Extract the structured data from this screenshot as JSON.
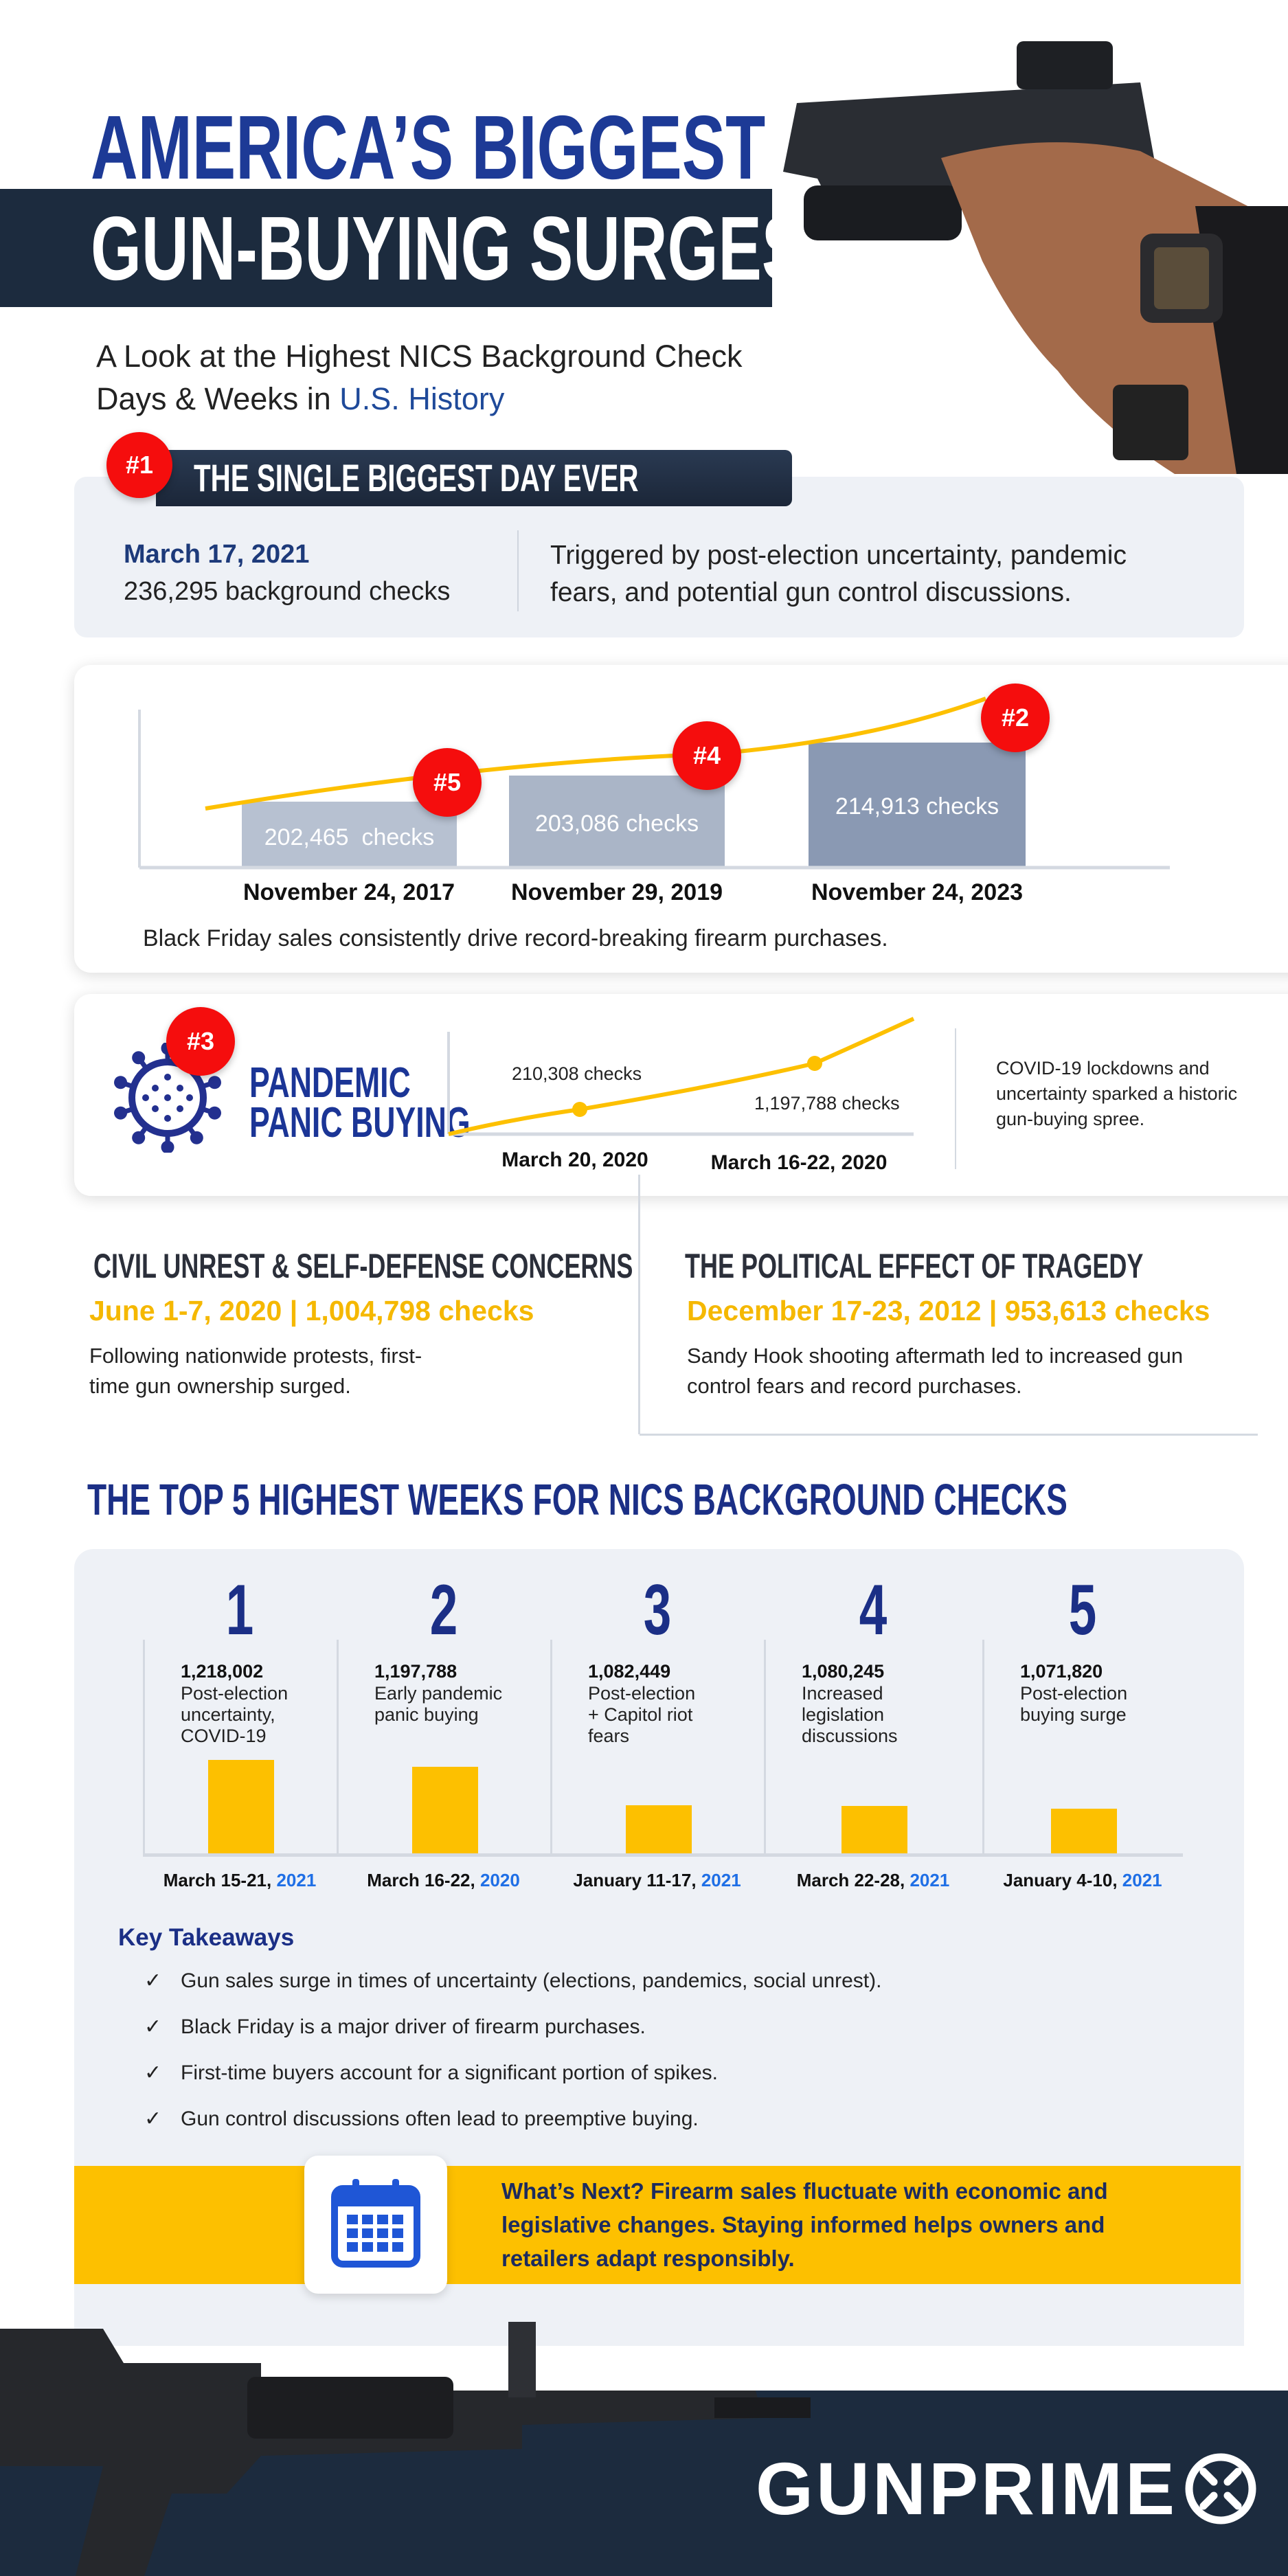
{
  "header": {
    "title_line1": "AMERICA’S BIGGEST",
    "title_line2": "GUN-BUYING SURGES",
    "subtitle_line1": "A Look at the Highest NICS Background Check",
    "subtitle_line2_prefix": "Days & Weeks in ",
    "subtitle_line2_highlight": "U.S. History"
  },
  "biggest_day": {
    "badge": "#1",
    "heading": "THE SINGLE BIGGEST DAY EVER",
    "date": "March 17, 2021",
    "checks": "236,295 background checks",
    "description_line1": "Triggered by post-election uncertainty, pandemic",
    "description_line2": "fears, and potential gun control discussions."
  },
  "black_friday": {
    "bars": [
      {
        "badge": "#5",
        "label": "202,465  checks",
        "date": "November 24, 2017",
        "value": 202465
      },
      {
        "badge": "#4",
        "label": "203,086 checks",
        "date": "November 29, 2019",
        "value": 203086
      },
      {
        "badge": "#2",
        "label": "214,913 checks",
        "date": "November 24, 2023",
        "value": 214913
      }
    ],
    "caption": "Black Friday sales consistently drive record-breaking firearm purchases."
  },
  "pandemic": {
    "badge": "#3",
    "title_line1": "PANDEMIC",
    "title_line2": "PANIC BUYING",
    "point1_label": "210,308 checks",
    "point1_date": "March 20, 2020",
    "point2_label": "1,197,788 checks",
    "point2_date": "March 16-22, 2020",
    "desc_line1": "COVID-19 lockdowns and",
    "desc_line2": "uncertainty sparked a historic",
    "desc_line3": "gun-buying spree."
  },
  "civil_unrest": {
    "heading": "CIVIL UNREST & SELF-DEFENSE CONCERNS",
    "stat": "June 1-7, 2020 | 1,004,798 checks",
    "body_line1": "Following nationwide protests, first-",
    "body_line2": "time gun ownership surged."
  },
  "tragedy": {
    "heading": "THE POLITICAL EFFECT OF TRAGEDY",
    "stat": "December 17-23, 2012 | 953,613 checks",
    "body_line1": "Sandy Hook shooting aftermath led to increased gun",
    "body_line2": "control fears and record purchases."
  },
  "top5": {
    "heading": "THE TOP 5 HIGHEST WEEKS FOR NICS BACKGROUND CHECKS"
  },
  "chart_data": {
    "type": "bar",
    "title": "THE TOP 5 HIGHEST WEEKS FOR NICS BACKGROUND CHECKS",
    "ranks": [
      "1",
      "2",
      "3",
      "4",
      "5"
    ],
    "values": [
      1218002,
      1197788,
      1082449,
      1080245,
      1071820
    ],
    "value_labels": [
      "1,218,002",
      "1,197,788",
      "1,082,449",
      "1,080,245",
      "1,071,820"
    ],
    "descriptions": [
      [
        "Post-election",
        "uncertainty,",
        "COVID-19"
      ],
      [
        "Early pandemic",
        "panic buying"
      ],
      [
        "Post-election",
        "+ Capitol riot",
        "fears"
      ],
      [
        "Increased",
        "legislation",
        "discussions"
      ],
      [
        "Post-election",
        "buying surge"
      ]
    ],
    "categories": [
      "March 15-21, 2021",
      "March 16-22, 2020",
      "January 11-17, 2021",
      "March 22-28, 2021",
      "January 4-10, 2021"
    ],
    "category_prefix": [
      "March 15-21, ",
      "March 16-22, ",
      "January 11-17, ",
      "March 22-28, ",
      "January 4-10, "
    ],
    "category_year": [
      "2021",
      "2020",
      "2021",
      "2021",
      "2021"
    ],
    "bar_color": "#fdc000"
  },
  "takeaways": {
    "heading": "Key Takeaways",
    "items": [
      "Gun sales surge in times of uncertainty (elections, pandemics, social unrest).",
      "Black Friday is a major driver of firearm purchases.",
      "First-time buyers account for a significant portion of spikes.",
      "Gun control discussions often lead to preemptive buying."
    ]
  },
  "whats_next": {
    "line1": "What’s Next? Firearm sales fluctuate with economic and",
    "line2": "legislative changes. Staying informed helps owners and",
    "line3": "retailers adapt responsibly."
  },
  "footer": {
    "logo": "GUNPRIME"
  },
  "colors": {
    "navy": "#1b2f86",
    "dark": "#1c2b3e",
    "yellow": "#fdc000",
    "red": "#f50d0d",
    "panel": "#eef1f6"
  }
}
